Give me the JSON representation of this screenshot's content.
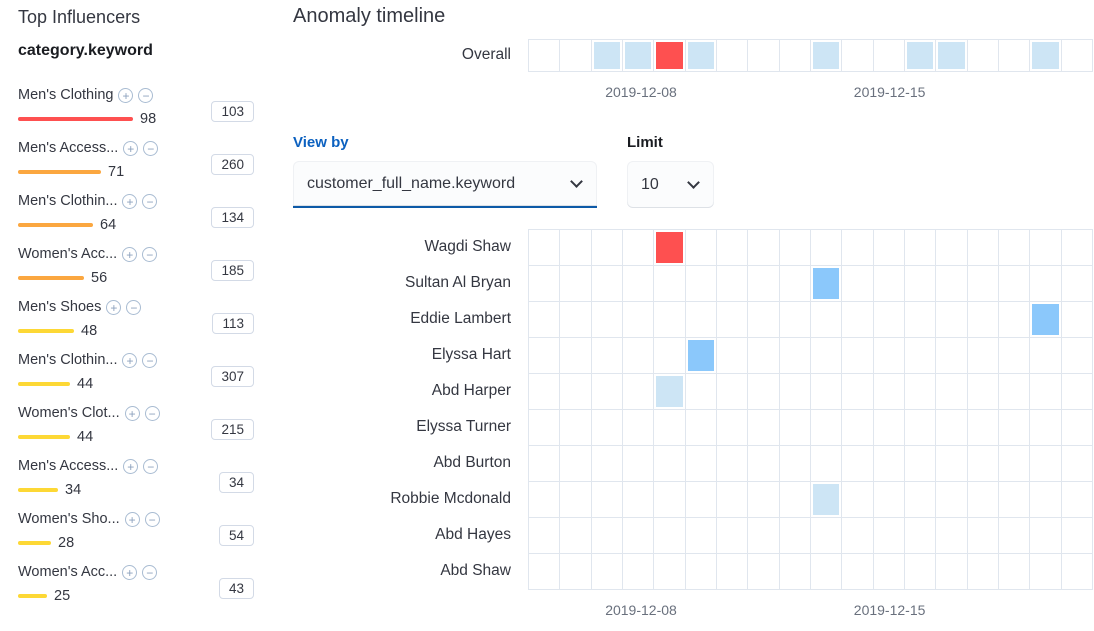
{
  "colors": {
    "critical": "#fe5050",
    "major": "#fba740",
    "minor": "#fdd835",
    "warning": "#8bc8fb",
    "low": "#cde5f5"
  },
  "icons": {
    "add_filter": "+",
    "remove_filter": "−"
  },
  "top_influencers": {
    "title": "Top Influencers",
    "field_name": "category.keyword",
    "items": [
      {
        "label": "Men's Clothing",
        "score": 98,
        "severity": "critical",
        "badge": "103"
      },
      {
        "label": "Men's Access...",
        "score": 71,
        "severity": "major",
        "badge": "260"
      },
      {
        "label": "Men's Clothin...",
        "score": 64,
        "severity": "major",
        "badge": "134"
      },
      {
        "label": "Women's Acc...",
        "score": 56,
        "severity": "major",
        "badge": "185"
      },
      {
        "label": "Men's Shoes",
        "score": 48,
        "severity": "minor",
        "badge": "113"
      },
      {
        "label": "Men's Clothin...",
        "score": 44,
        "severity": "minor",
        "badge": "307"
      },
      {
        "label": "Women's Clot...",
        "score": 44,
        "severity": "minor",
        "badge": "215"
      },
      {
        "label": "Men's Access...",
        "score": 34,
        "severity": "minor",
        "badge": "34"
      },
      {
        "label": "Women's Sho...",
        "score": 28,
        "severity": "minor",
        "badge": "54"
      },
      {
        "label": "Women's Acc...",
        "score": 25,
        "severity": "minor",
        "badge": "43"
      }
    ]
  },
  "timeline": {
    "title": "Anomaly timeline",
    "overall_label": "Overall",
    "columns": 18,
    "overall_cells": [
      {
        "col": 2,
        "severity": "low"
      },
      {
        "col": 3,
        "severity": "low"
      },
      {
        "col": 4,
        "severity": "critical"
      },
      {
        "col": 5,
        "severity": "low"
      },
      {
        "col": 9,
        "severity": "low"
      },
      {
        "col": 12,
        "severity": "low"
      },
      {
        "col": 13,
        "severity": "low"
      },
      {
        "col": 16,
        "severity": "low"
      }
    ],
    "axis_labels": [
      {
        "text": "2019-12-08",
        "position_pct": 20
      },
      {
        "text": "2019-12-15",
        "position_pct": 64
      }
    ],
    "view_by": {
      "label": "View by",
      "selected": "customer_full_name.keyword"
    },
    "limit": {
      "label": "Limit",
      "selected": "10"
    },
    "lanes": [
      {
        "name": "Wagdi Shaw",
        "cells": [
          {
            "col": 4,
            "severity": "critical"
          }
        ]
      },
      {
        "name": "Sultan Al Bryan",
        "cells": [
          {
            "col": 9,
            "severity": "warning"
          }
        ]
      },
      {
        "name": "Eddie Lambert",
        "cells": [
          {
            "col": 16,
            "severity": "warning"
          }
        ]
      },
      {
        "name": "Elyssa Hart",
        "cells": [
          {
            "col": 5,
            "severity": "warning"
          }
        ]
      },
      {
        "name": "Abd Harper",
        "cells": [
          {
            "col": 4,
            "severity": "low"
          }
        ]
      },
      {
        "name": "Elyssa Turner",
        "cells": []
      },
      {
        "name": "Abd Burton",
        "cells": []
      },
      {
        "name": "Robbie Mcdonald",
        "cells": [
          {
            "col": 9,
            "severity": "low"
          }
        ]
      },
      {
        "name": "Abd Hayes",
        "cells": []
      },
      {
        "name": "Abd Shaw",
        "cells": []
      }
    ]
  }
}
